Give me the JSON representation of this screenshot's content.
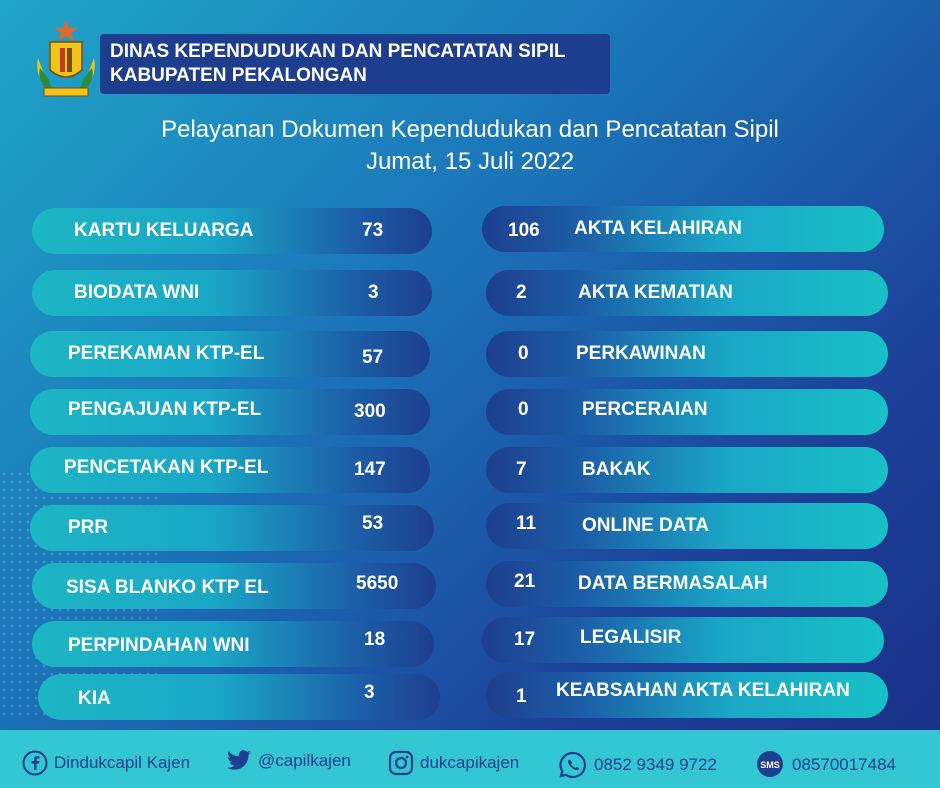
{
  "header": {
    "agency_line1": "DINAS KEPENDUDUKAN DAN PENCATATAN SIPIL",
    "agency_line2": "KABUPATEN PEKALONGAN",
    "logo_icon": "regency-emblem-icon"
  },
  "title": {
    "line1": "Pelayanan Dokumen Kependudukan dan Pencatatan Sipil",
    "line2": "Jumat, 15 Juli 2022"
  },
  "left_services": [
    {
      "label": "KARTU KELUARGA",
      "value": "73"
    },
    {
      "label": "BIODATA WNI",
      "value": "3"
    },
    {
      "label": "PEREKAMAN KTP-EL",
      "value": "57"
    },
    {
      "label": "PENGAJUAN KTP-EL",
      "value": "300"
    },
    {
      "label": "PENCETAKAN KTP-EL",
      "value": "147"
    },
    {
      "label": "PRR",
      "value": "53"
    },
    {
      "label": "SISA BLANKO KTP EL",
      "value": "5650"
    },
    {
      "label": "PERPINDAHAN WNI",
      "value": "18"
    },
    {
      "label": "KIA",
      "value": "3"
    }
  ],
  "right_services": [
    {
      "label": "AKTA KELAHIRAN",
      "value": "106"
    },
    {
      "label": "AKTA KEMATIAN",
      "value": "2"
    },
    {
      "label": "PERKAWINAN",
      "value": "0"
    },
    {
      "label": "PERCERAIAN",
      "value": "0"
    },
    {
      "label": "BAKAK",
      "value": "7"
    },
    {
      "label": "ONLINE DATA",
      "value": "11"
    },
    {
      "label": "DATA BERMASALAH",
      "value": "21"
    },
    {
      "label": "LEGALISIR",
      "value": "17"
    },
    {
      "label": "KEABSAHAN AKTA KELAHIRAN",
      "value": "1"
    }
  ],
  "footer": {
    "facebook": "Dindukcapil Kajen",
    "twitter": "@capilkajen",
    "instagram": "dukcapikajen",
    "whatsapp": "0852 9349 9722",
    "sms_badge": "SMS",
    "sms": "08570017484"
  },
  "colors": {
    "footer_bg": "#32c7d3",
    "footer_text": "#1d3f8f",
    "header_box": "#1d3d8e"
  }
}
